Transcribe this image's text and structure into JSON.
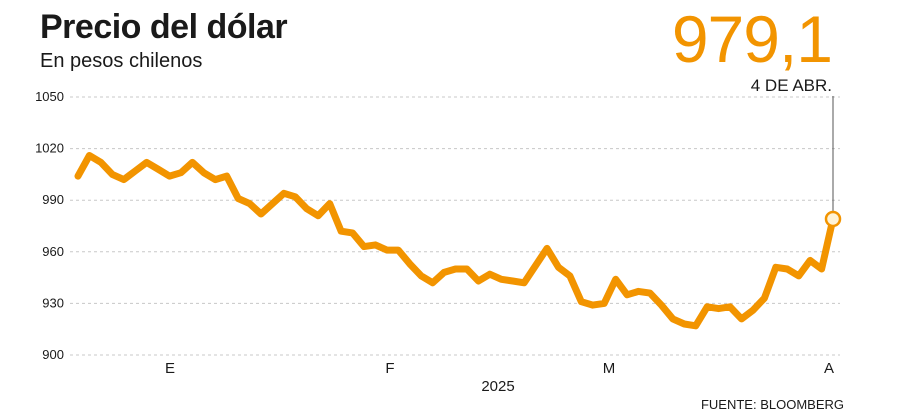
{
  "header": {
    "title": "Precio del dólar",
    "subtitle": "En pesos chilenos",
    "latest_value": "979,1",
    "latest_date": "4 DE ABR.",
    "source": "FUENTE: BLOOMBERG"
  },
  "colors": {
    "line": "#f29400",
    "grid": "#c8c8c8",
    "marker_fill": "#fff3d6"
  },
  "chart_data": {
    "type": "line",
    "title": "Precio del dólar",
    "subtitle": "En pesos chilenos",
    "xlabel": "2025",
    "ylabel": "",
    "ylim": [
      900,
      1050
    ],
    "yticks": [
      900,
      930,
      960,
      990,
      1020,
      1050
    ],
    "grid": true,
    "x_tick_labels": [
      "E",
      "F",
      "M",
      "A"
    ],
    "series": [
      {
        "values": [
          1004,
          1016,
          1012,
          1005,
          1002,
          1007,
          1012,
          1008,
          1004,
          1006,
          1012,
          1006,
          1002,
          1004,
          991,
          988,
          982,
          988,
          994,
          992,
          985,
          981,
          988,
          972,
          971,
          963,
          964,
          961,
          961,
          953,
          946,
          942,
          948,
          950,
          950,
          943,
          947,
          944,
          943,
          942,
          952,
          962,
          951,
          946,
          931,
          929,
          930,
          944,
          935,
          937,
          936,
          929,
          921,
          918,
          917,
          928,
          927,
          928,
          921,
          926,
          933,
          951,
          950,
          946,
          955,
          950,
          979.1
        ]
      }
    ],
    "annotations": [
      {
        "label": "979,1",
        "date": "4 DE ABR.",
        "value": 979.1
      }
    ]
  }
}
